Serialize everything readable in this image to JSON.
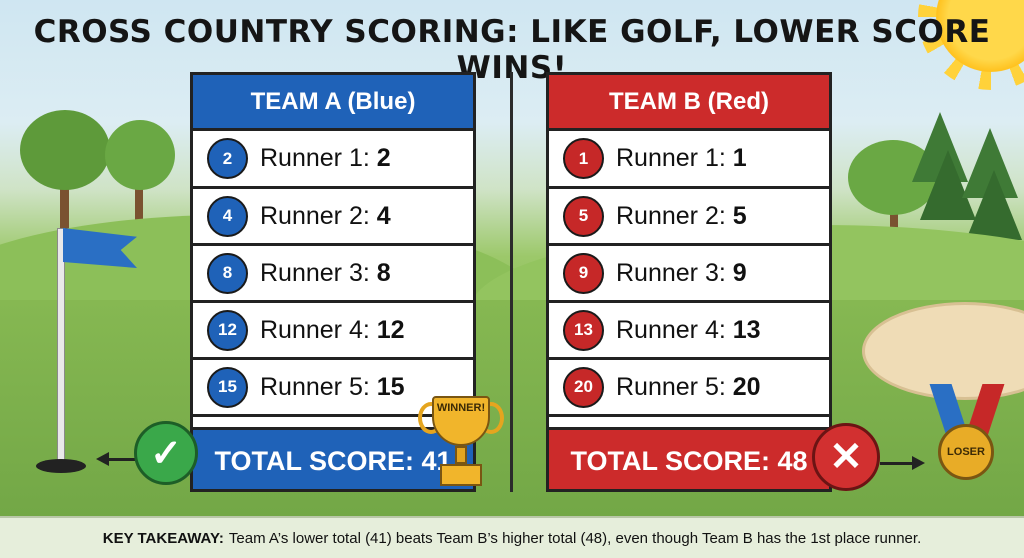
{
  "title": "CROSS COUNTRY SCORING: LIKE GOLF, LOWER SCORE WINS!",
  "team_a": {
    "name": "TEAM A (Blue)",
    "color": "#1f62b8",
    "runners": [
      {
        "place": "2",
        "label": "Runner 1:",
        "score": "2"
      },
      {
        "place": "4",
        "label": "Runner 2:",
        "score": "4"
      },
      {
        "place": "8",
        "label": "Runner 3:",
        "score": "8"
      },
      {
        "place": "12",
        "label": "Runner 4:",
        "score": "12"
      },
      {
        "place": "15",
        "label": "Runner 5:",
        "score": "15"
      }
    ],
    "total": "TOTAL SCORE: 41",
    "award": "WINNER!"
  },
  "team_b": {
    "name": "TEAM B (Red)",
    "color": "#cc2b2b",
    "runners": [
      {
        "place": "1",
        "label": "Runner 1:",
        "score": "1"
      },
      {
        "place": "5",
        "label": "Runner 2:",
        "score": "5"
      },
      {
        "place": "9",
        "label": "Runner 3:",
        "score": "9"
      },
      {
        "place": "13",
        "label": "Runner 4:",
        "score": "13"
      },
      {
        "place": "20",
        "label": "Runner 5:",
        "score": "20"
      }
    ],
    "total": "TOTAL SCORE: 48",
    "award": "LOSER"
  },
  "icons": {
    "check": "checkmark-icon",
    "cross": "x-icon",
    "trophy": "trophy-icon",
    "medal": "medal-icon",
    "flag": "golf-flag-icon",
    "sun": "sun-icon"
  },
  "takeaway": {
    "label": "KEY TAKEAWAY:",
    "text": "Team A’s lower total (41) beats Team B’s higher total (48), even though Team B has the 1st place runner."
  }
}
